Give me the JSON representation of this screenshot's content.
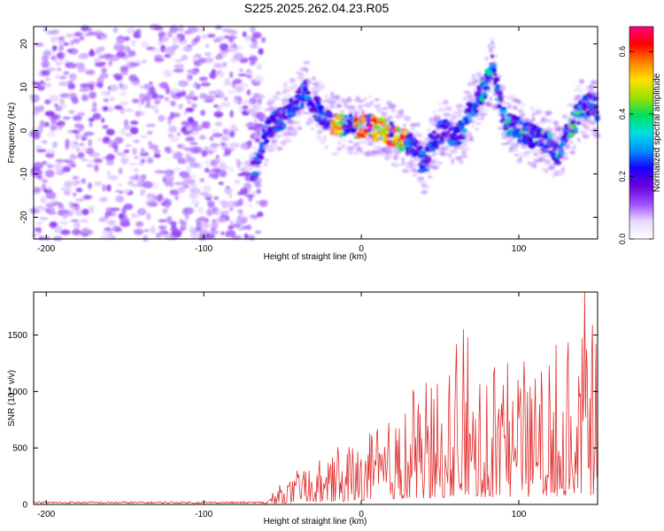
{
  "title": "S225.2025.262.04.23.R05",
  "chart_data": [
    {
      "type": "heatmap",
      "xlabel": "Height of straight line (km)",
      "ylabel": "Frequency (Hz)",
      "xlim": [
        -208,
        150
      ],
      "ylim": [
        -25,
        24
      ],
      "xticks": [
        -200,
        -100,
        0,
        100
      ],
      "xtick_labels": [
        "-200",
        "-100",
        "0",
        "100"
      ],
      "yticks": [
        -20,
        -10,
        0,
        10,
        20
      ],
      "ytick_labels": [
        "-20",
        "-10",
        "0",
        "10",
        "20"
      ],
      "colorbar": {
        "label": "Normalized spectral amplitude",
        "range": [
          0,
          0.68
        ],
        "ticks": [
          0,
          0.2,
          0.4,
          0.6
        ],
        "tick_labels": [
          "0.0",
          "0.2",
          "0.4",
          "0.6"
        ],
        "colormap": [
          "#ffffff",
          "#e6d8ff",
          "#9b4dff",
          "#6a00d8",
          "#1a00ff",
          "#0090ff",
          "#00e0e0",
          "#00e060",
          "#a0e000",
          "#ffe000",
          "#ff8000",
          "#ff0000",
          "#ff0080"
        ]
      },
      "noise_region_xlim": [
        -208,
        -62
      ],
      "ridge": {
        "x": [
          -68,
          -60,
          -50,
          -40,
          -35,
          -30,
          -25,
          -20,
          -15,
          -10,
          -5,
          0,
          5,
          10,
          15,
          20,
          25,
          30,
          35,
          40,
          45,
          50,
          55,
          60,
          65,
          70,
          75,
          80,
          83,
          86,
          90,
          95,
          100,
          105,
          110,
          115,
          120,
          125,
          130,
          135,
          140,
          145,
          150
        ],
        "y": [
          -9,
          0,
          3,
          7,
          9,
          6,
          4,
          2,
          1,
          1.5,
          1,
          0.5,
          1,
          0.5,
          0,
          -1,
          -2,
          -3,
          -5,
          -8,
          -3,
          -0.5,
          0,
          -1,
          0,
          5,
          8,
          11,
          15,
          10,
          3,
          1,
          0,
          -0.5,
          -1.5,
          -2,
          -3,
          -6,
          -1,
          2,
          5,
          6,
          5
        ]
      },
      "peak_x": [
        -15,
        0,
        10,
        15,
        25
      ]
    },
    {
      "type": "line",
      "xlabel": "Height of straight line (km)",
      "ylabel": "SNR (10 * v/v)",
      "xlim": [
        -208,
        150
      ],
      "ylim": [
        0,
        1880
      ],
      "xticks": [
        -200,
        -100,
        0,
        100
      ],
      "xtick_labels": [
        "-200",
        "-100",
        "0",
        "100"
      ],
      "yticks": [
        0,
        500,
        1000,
        1500
      ],
      "ytick_labels": [
        "0",
        "500",
        "1000",
        "1500"
      ],
      "color": "#e03030",
      "envelope": {
        "x": [
          -208,
          -62,
          -50,
          -30,
          -10,
          0,
          10,
          30,
          50,
          65,
          80,
          100,
          120,
          140,
          150
        ],
        "y": [
          25,
          25,
          250,
          380,
          550,
          680,
          900,
          1000,
          1150,
          1550,
          1250,
          1400,
          1350,
          1880,
          1450
        ]
      },
      "notable_peaks": [
        {
          "x": 65,
          "y": 1550
        },
        {
          "x": 142,
          "y": 1880
        },
        {
          "x": 149,
          "y": 1420
        }
      ]
    }
  ]
}
